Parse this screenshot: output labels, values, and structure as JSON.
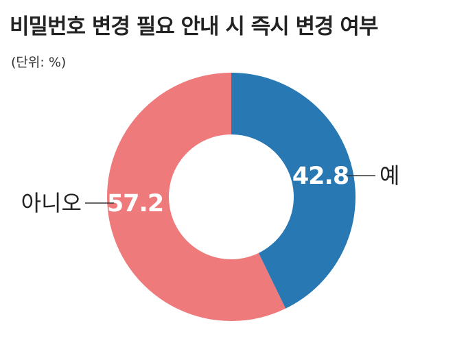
{
  "chart_data": {
    "type": "pie",
    "title": "비밀번호 변경 필요 안내 시 즉시 변경 여부",
    "subtitle": "(단위: %)",
    "slices": [
      {
        "label": "예",
        "value": 42.8,
        "value_text": "42.8",
        "color": "#2878b4"
      },
      {
        "label": "아니오",
        "value": 57.2,
        "value_text": "57.2",
        "color": "#ee7a7b"
      }
    ],
    "donut": true,
    "start": "top",
    "direction": "clockwise"
  }
}
